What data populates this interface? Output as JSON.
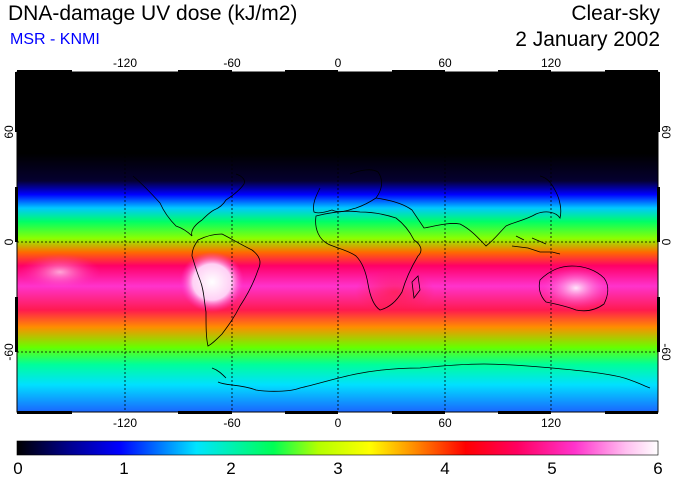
{
  "header": {
    "title": "DNA-damage UV dose (kJ/m2)",
    "subtitle": "MSR - KNMI",
    "conditions": "Clear-sky",
    "date": "2 January 2002"
  },
  "colors": {
    "subtitle": "#0000ff",
    "grid": "#000000",
    "coast": "#000000"
  },
  "map": {
    "longitude_ticks": [
      "-120",
      "-60",
      "0",
      "60",
      "120"
    ],
    "latitude_ticks": [
      "60",
      "0",
      "-60"
    ]
  },
  "colorbar": {
    "min": 0,
    "max": 6,
    "tick_labels": [
      "0",
      "1",
      "2",
      "3",
      "4",
      "5",
      "6"
    ],
    "colors": [
      "#000000",
      "#00008c",
      "#0000ff",
      "#00e5ff",
      "#00ff55",
      "#b3ff00",
      "#ffff00",
      "#ff8c00",
      "#ff0000",
      "#ff0060",
      "#ff33cc",
      "#ffbff0",
      "#ffffff"
    ]
  }
}
